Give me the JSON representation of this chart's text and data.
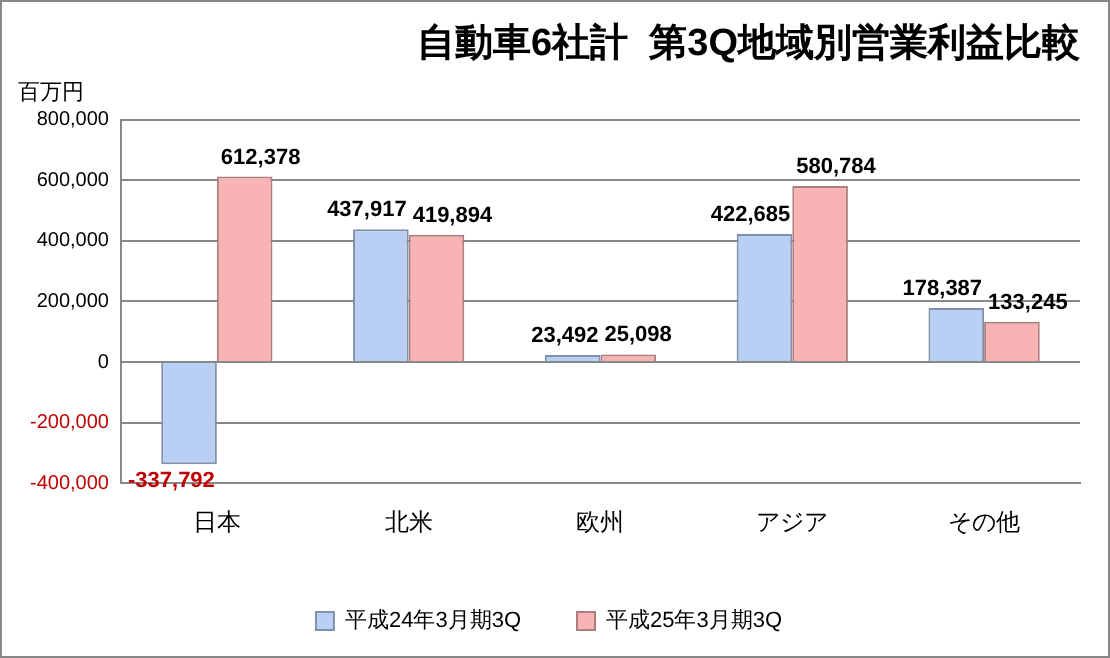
{
  "chart_data": {
    "type": "bar",
    "title": "自動車6社計  第3Q地域別営業利益比較",
    "ylabel": "百万円",
    "categories": [
      "日本",
      "北米",
      "欧州",
      "アジア",
      "その他"
    ],
    "series": [
      {
        "name": "平成24年3月期3Q",
        "color": "#b9cff4",
        "values": [
          -337792,
          437917,
          23492,
          422685,
          178387
        ],
        "value_labels": [
          "-337,792",
          "437,917",
          "23,492",
          "422,685",
          "178,387"
        ]
      },
      {
        "name": "平成25年3月期3Q",
        "color": "#f8b4b4",
        "values": [
          612378,
          419894,
          25098,
          580784,
          133245
        ],
        "value_labels": [
          "612,378",
          "419,894",
          "25,098",
          "580,784",
          "133,245"
        ]
      }
    ],
    "ylim": [
      -400000,
      800000
    ],
    "yticks": [
      {
        "value": -400000,
        "label": "-400,000"
      },
      {
        "value": -200000,
        "label": "-200,000"
      },
      0,
      {
        "value": 200000,
        "label": "200,000"
      },
      {
        "value": 400000,
        "label": "400,000"
      },
      {
        "value": 600000,
        "label": "600,000"
      },
      {
        "value": 800000,
        "label": "800,000"
      }
    ],
    "grid": "y",
    "legend": "bottom"
  }
}
